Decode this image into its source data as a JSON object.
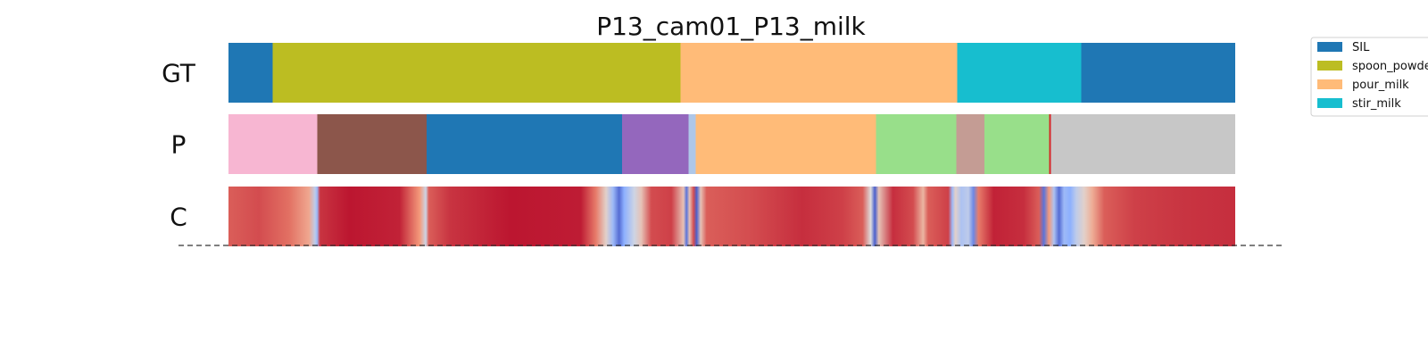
{
  "chart_data": {
    "type": "segmentation-timeline",
    "title": "P13_cam01_P13_milk",
    "rows": [
      {
        "label": "GT",
        "segments": [
          {
            "start": 0.0,
            "end": 0.044,
            "color": "#1f77b4"
          },
          {
            "start": 0.044,
            "end": 0.449,
            "color": "#bcbd22"
          },
          {
            "start": 0.449,
            "end": 0.724,
            "color": "#ffbb78"
          },
          {
            "start": 0.724,
            "end": 0.847,
            "color": "#17becf"
          },
          {
            "start": 0.847,
            "end": 1.0,
            "color": "#1f77b4"
          }
        ]
      },
      {
        "label": "P",
        "segments": [
          {
            "start": 0.0,
            "end": 0.088,
            "color": "#f7b6d2"
          },
          {
            "start": 0.088,
            "end": 0.197,
            "color": "#8c564b"
          },
          {
            "start": 0.197,
            "end": 0.391,
            "color": "#1f77b4"
          },
          {
            "start": 0.391,
            "end": 0.457,
            "color": "#9467bd"
          },
          {
            "start": 0.457,
            "end": 0.464,
            "color": "#aec7e8"
          },
          {
            "start": 0.464,
            "end": 0.643,
            "color": "#ffbb78"
          },
          {
            "start": 0.643,
            "end": 0.723,
            "color": "#98df8a"
          },
          {
            "start": 0.723,
            "end": 0.751,
            "color": "#c49c94"
          },
          {
            "start": 0.751,
            "end": 0.815,
            "color": "#98df8a"
          },
          {
            "start": 0.815,
            "end": 0.817,
            "color": "#d62728"
          },
          {
            "start": 0.817,
            "end": 1.0,
            "color": "#c7c7c7"
          }
        ]
      },
      {
        "label": "C",
        "colormap": "coolwarm",
        "confidence": [
          {
            "t": 0.0,
            "v": 0.85
          },
          {
            "t": 0.03,
            "v": 0.88
          },
          {
            "t": 0.06,
            "v": 0.82
          },
          {
            "t": 0.08,
            "v": 0.7
          },
          {
            "t": 0.086,
            "v": 0.4
          },
          {
            "t": 0.088,
            "v": 0.3
          },
          {
            "t": 0.091,
            "v": 0.92
          },
          {
            "t": 0.12,
            "v": 0.97
          },
          {
            "t": 0.17,
            "v": 0.95
          },
          {
            "t": 0.19,
            "v": 0.75
          },
          {
            "t": 0.196,
            "v": 0.45
          },
          {
            "t": 0.199,
            "v": 0.85
          },
          {
            "t": 0.22,
            "v": 0.92
          },
          {
            "t": 0.28,
            "v": 0.97
          },
          {
            "t": 0.35,
            "v": 0.96
          },
          {
            "t": 0.365,
            "v": 0.8
          },
          {
            "t": 0.375,
            "v": 0.55
          },
          {
            "t": 0.382,
            "v": 0.3
          },
          {
            "t": 0.388,
            "v": 0.08
          },
          {
            "t": 0.393,
            "v": 0.25
          },
          {
            "t": 0.398,
            "v": 0.35
          },
          {
            "t": 0.403,
            "v": 0.45
          },
          {
            "t": 0.41,
            "v": 0.6
          },
          {
            "t": 0.42,
            "v": 0.88
          },
          {
            "t": 0.44,
            "v": 0.9
          },
          {
            "t": 0.452,
            "v": 0.6
          },
          {
            "t": 0.455,
            "v": 0.1
          },
          {
            "t": 0.458,
            "v": 0.6
          },
          {
            "t": 0.462,
            "v": 0.88
          },
          {
            "t": 0.465,
            "v": 0.05
          },
          {
            "t": 0.469,
            "v": 0.6
          },
          {
            "t": 0.475,
            "v": 0.85
          },
          {
            "t": 0.52,
            "v": 0.88
          },
          {
            "t": 0.57,
            "v": 0.93
          },
          {
            "t": 0.61,
            "v": 0.9
          },
          {
            "t": 0.63,
            "v": 0.85
          },
          {
            "t": 0.638,
            "v": 0.5
          },
          {
            "t": 0.642,
            "v": 0.05
          },
          {
            "t": 0.646,
            "v": 0.6
          },
          {
            "t": 0.66,
            "v": 0.93
          },
          {
            "t": 0.68,
            "v": 0.88
          },
          {
            "t": 0.69,
            "v": 0.65
          },
          {
            "t": 0.695,
            "v": 0.85
          },
          {
            "t": 0.715,
            "v": 0.9
          },
          {
            "t": 0.719,
            "v": 0.3
          },
          {
            "t": 0.722,
            "v": 0.55
          },
          {
            "t": 0.728,
            "v": 0.35
          },
          {
            "t": 0.735,
            "v": 0.4
          },
          {
            "t": 0.74,
            "v": 0.15
          },
          {
            "t": 0.745,
            "v": 0.8
          },
          {
            "t": 0.76,
            "v": 0.95
          },
          {
            "t": 0.79,
            "v": 0.93
          },
          {
            "t": 0.805,
            "v": 0.85
          },
          {
            "t": 0.81,
            "v": 0.1
          },
          {
            "t": 0.815,
            "v": 0.75
          },
          {
            "t": 0.82,
            "v": 0.35
          },
          {
            "t": 0.825,
            "v": 0.08
          },
          {
            "t": 0.83,
            "v": 0.3
          },
          {
            "t": 0.836,
            "v": 0.25
          },
          {
            "t": 0.842,
            "v": 0.4
          },
          {
            "t": 0.85,
            "v": 0.55
          },
          {
            "t": 0.858,
            "v": 0.68
          },
          {
            "t": 0.87,
            "v": 0.85
          },
          {
            "t": 0.9,
            "v": 0.9
          },
          {
            "t": 0.95,
            "v": 0.92
          },
          {
            "t": 1.0,
            "v": 0.93
          }
        ]
      }
    ],
    "legend": {
      "placement": "upper-right",
      "entries": [
        {
          "label": "SIL",
          "color": "#1f77b4"
        },
        {
          "label": "spoon_powder",
          "color": "#bcbd22"
        },
        {
          "label": "pour_milk",
          "color": "#ffbb78"
        },
        {
          "label": "stir_milk",
          "color": "#17becf"
        }
      ]
    },
    "baseline": {
      "style": "dashed",
      "color": "#000000"
    }
  }
}
